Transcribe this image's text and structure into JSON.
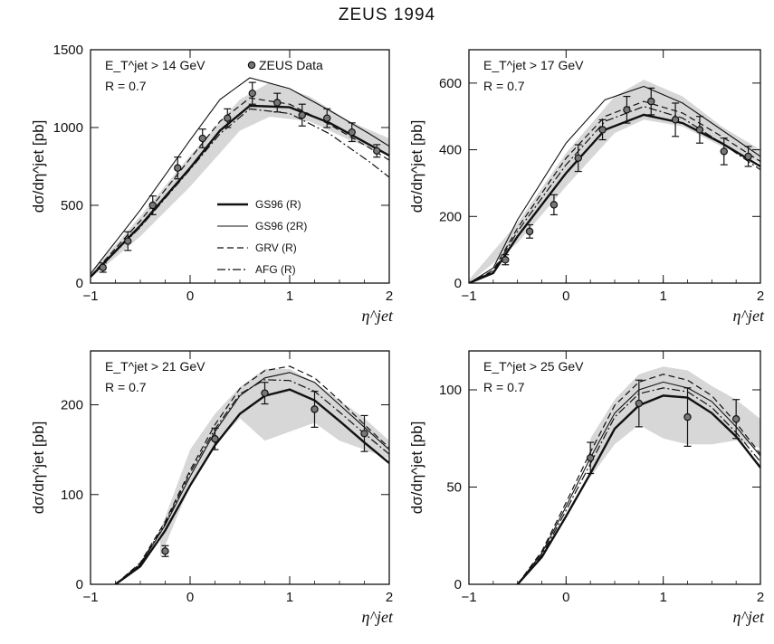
{
  "title": "ZEUS 1994",
  "legend": {
    "data_label": "ZEUS Data",
    "entries": [
      {
        "label": "GS96 (R)",
        "style": "thick"
      },
      {
        "label": "GS96 (2R)",
        "style": "thin"
      },
      {
        "label": "GRV (R)",
        "style": "dashed"
      },
      {
        "label": "AFG (R)",
        "style": "dashdot"
      }
    ]
  },
  "chart_data": [
    {
      "type": "line",
      "cut_label": "E_T^jet > 14 GeV",
      "radius_label": "R = 0.7",
      "ylabel": "dσ/dη^jet [pb]",
      "xlabel": "η^jet",
      "xlim": [
        -1,
        2
      ],
      "ylim": [
        0,
        1500
      ],
      "yticks": [
        0,
        500,
        1000,
        1500
      ],
      "xticks": [
        -1,
        0,
        1,
        2
      ],
      "data": {
        "x": [
          -0.875,
          -0.625,
          -0.375,
          -0.125,
          0.125,
          0.375,
          0.625,
          0.875,
          1.125,
          1.375,
          1.625,
          1.875
        ],
        "y": [
          100,
          270,
          500,
          740,
          930,
          1060,
          1220,
          1160,
          1080,
          1060,
          970,
          850
        ],
        "err": [
          30,
          60,
          60,
          70,
          60,
          60,
          70,
          60,
          70,
          60,
          60,
          40
        ]
      },
      "band": {
        "x": [
          -1.0,
          -0.5,
          0.0,
          0.5,
          0.8,
          1.2,
          1.6,
          2.0
        ],
        "low": [
          30,
          300,
          620,
          980,
          1070,
          1040,
          920,
          820
        ],
        "high": [
          60,
          430,
          820,
          1180,
          1290,
          1200,
          1040,
          930
        ]
      },
      "series": [
        {
          "name": "GS96 (R)",
          "x": [
            -1.0,
            -0.5,
            0.0,
            0.3,
            0.6,
            1.0,
            1.4,
            1.8,
            2.0
          ],
          "y": [
            40,
            370,
            740,
            980,
            1140,
            1130,
            1030,
            890,
            820
          ]
        },
        {
          "name": "GS96 (2R)",
          "x": [
            -1.0,
            -0.5,
            0.0,
            0.3,
            0.6,
            1.0,
            1.4,
            1.8,
            2.0
          ],
          "y": [
            60,
            470,
            920,
            1180,
            1320,
            1250,
            1110,
            960,
            880
          ]
        },
        {
          "name": "GRV (R)",
          "x": [
            -1.0,
            -0.5,
            0.0,
            0.3,
            0.6,
            1.0,
            1.4,
            1.8,
            2.0
          ],
          "y": [
            45,
            400,
            800,
            1040,
            1190,
            1150,
            1020,
            870,
            790
          ]
        },
        {
          "name": "AFG (R)",
          "x": [
            -1.0,
            -0.5,
            0.0,
            0.3,
            0.6,
            1.0,
            1.4,
            1.8,
            2.0
          ],
          "y": [
            40,
            360,
            730,
            960,
            1120,
            1090,
            960,
            780,
            680
          ]
        }
      ]
    },
    {
      "type": "line",
      "cut_label": "E_T^jet > 17 GeV",
      "radius_label": "R = 0.7",
      "ylabel": "dσ/dη^jet [pb]",
      "xlabel": "η^jet",
      "xlim": [
        -1,
        2
      ],
      "ylim": [
        0,
        700
      ],
      "yticks": [
        0,
        200,
        400,
        600
      ],
      "xticks": [
        -1,
        0,
        1,
        2
      ],
      "data": {
        "x": [
          -0.625,
          -0.375,
          -0.125,
          0.125,
          0.375,
          0.625,
          0.875,
          1.125,
          1.375,
          1.625,
          1.875
        ],
        "y": [
          70,
          155,
          235,
          375,
          460,
          520,
          545,
          490,
          460,
          395,
          380
        ],
        "err": [
          15,
          20,
          30,
          40,
          30,
          40,
          40,
          50,
          40,
          40,
          30
        ]
      },
      "band": {
        "x": [
          -1.0,
          -0.5,
          0.0,
          0.5,
          0.8,
          1.2,
          1.6,
          2.0
        ],
        "low": [
          0,
          120,
          290,
          450,
          490,
          470,
          410,
          360
        ],
        "high": [
          10,
          180,
          390,
          560,
          610,
          560,
          470,
          400
        ]
      },
      "series": [
        {
          "name": "GS96 (R)",
          "x": [
            -1.0,
            -0.75,
            -0.5,
            0.0,
            0.4,
            0.8,
            1.2,
            1.6,
            2.0
          ],
          "y": [
            0,
            30,
            140,
            330,
            460,
            505,
            480,
            420,
            350
          ]
        },
        {
          "name": "GS96 (2R)",
          "x": [
            -1.0,
            -0.75,
            -0.5,
            0.0,
            0.4,
            0.8,
            1.2,
            1.6,
            2.0
          ],
          "y": [
            0,
            45,
            190,
            420,
            550,
            590,
            540,
            460,
            380
          ]
        },
        {
          "name": "GRV (R)",
          "x": [
            -1.0,
            -0.75,
            -0.5,
            0.0,
            0.4,
            0.8,
            1.2,
            1.6,
            2.0
          ],
          "y": [
            0,
            38,
            165,
            375,
            500,
            545,
            510,
            440,
            365
          ]
        },
        {
          "name": "AFG (R)",
          "x": [
            -1.0,
            -0.75,
            -0.5,
            0.0,
            0.4,
            0.8,
            1.2,
            1.6,
            2.0
          ],
          "y": [
            0,
            35,
            155,
            355,
            485,
            530,
            495,
            420,
            340
          ]
        }
      ]
    },
    {
      "type": "line",
      "cut_label": "E_T^jet > 21 GeV",
      "radius_label": "R = 0.7",
      "ylabel": "dσ/dη^jet [pb]",
      "xlabel": "η^jet",
      "xlim": [
        -1,
        2
      ],
      "ylim": [
        0,
        260
      ],
      "yticks": [
        0,
        100,
        200
      ],
      "xticks": [
        -1,
        0,
        1,
        2
      ],
      "data": {
        "x": [
          -0.25,
          0.25,
          0.75,
          1.25,
          1.75
        ],
        "y": [
          37,
          162,
          213,
          195,
          168
        ],
        "err": [
          6,
          12,
          12,
          20,
          20
        ]
      },
      "band": {
        "x": [
          -0.3,
          0.0,
          0.25,
          0.5,
          0.75,
          1.0,
          1.25,
          1.5,
          1.75,
          2.0
        ],
        "low": [
          30,
          110,
          155,
          185,
          160,
          170,
          180,
          160,
          150,
          140
        ],
        "high": [
          60,
          150,
          190,
          220,
          240,
          240,
          225,
          205,
          185,
          160
        ]
      },
      "series": [
        {
          "name": "GS96 (R)",
          "x": [
            -0.75,
            -0.5,
            -0.25,
            0.0,
            0.25,
            0.5,
            0.75,
            1.0,
            1.25,
            1.5,
            1.75,
            2.0
          ],
          "y": [
            0,
            20,
            60,
            110,
            155,
            190,
            210,
            217,
            205,
            182,
            158,
            135
          ]
        },
        {
          "name": "GS96 (2R)",
          "x": [
            -0.75,
            -0.5,
            -0.25,
            0.0,
            0.25,
            0.5,
            0.75,
            1.0,
            1.25,
            1.5,
            1.75,
            2.0
          ],
          "y": [
            0,
            22,
            66,
            120,
            170,
            210,
            230,
            236,
            225,
            200,
            175,
            150
          ]
        },
        {
          "name": "GRV (R)",
          "x": [
            -0.75,
            -0.5,
            -0.25,
            0.0,
            0.25,
            0.5,
            0.75,
            1.0,
            1.25,
            1.5,
            1.75,
            2.0
          ],
          "y": [
            0,
            24,
            70,
            127,
            178,
            218,
            238,
            243,
            230,
            205,
            178,
            152
          ]
        },
        {
          "name": "AFG (R)",
          "x": [
            -0.75,
            -0.5,
            -0.25,
            0.0,
            0.25,
            0.5,
            0.75,
            1.0,
            1.25,
            1.5,
            1.75,
            2.0
          ],
          "y": [
            0,
            23,
            68,
            124,
            173,
            212,
            228,
            227,
            215,
            192,
            168,
            145
          ]
        }
      ]
    },
    {
      "type": "line",
      "cut_label": "E_T^jet > 25 GeV",
      "radius_label": "R = 0.7",
      "ylabel": "dσ/dη^jet [pb]",
      "xlabel": "η^jet",
      "xlim": [
        -1,
        2
      ],
      "ylim": [
        0,
        120
      ],
      "yticks": [
        0,
        50,
        100
      ],
      "xticks": [
        -1,
        0,
        1,
        2
      ],
      "data": {
        "x": [
          0.25,
          0.75,
          1.25,
          1.75
        ],
        "y": [
          65,
          93,
          86,
          85
        ],
        "err": [
          8,
          12,
          15,
          10
        ]
      },
      "band": {
        "x": [
          0.25,
          0.5,
          0.75,
          1.0,
          1.25,
          1.5,
          1.75,
          2.0
        ],
        "low": [
          55,
          72,
          82,
          75,
          72,
          72,
          74,
          70
        ],
        "high": [
          75,
          95,
          108,
          112,
          110,
          102,
          95,
          85
        ]
      },
      "series": [
        {
          "name": "GS96 (R)",
          "x": [
            -0.5,
            -0.25,
            0.0,
            0.25,
            0.5,
            0.75,
            1.0,
            1.25,
            1.5,
            1.75,
            2.0
          ],
          "y": [
            0,
            14,
            35,
            57,
            80,
            92,
            97,
            96,
            88,
            76,
            60
          ]
        },
        {
          "name": "GS96 (2R)",
          "x": [
            -0.5,
            -0.25,
            0.0,
            0.25,
            0.5,
            0.75,
            1.0,
            1.25,
            1.5,
            1.75,
            2.0
          ],
          "y": [
            0,
            16,
            40,
            65,
            88,
            100,
            104,
            101,
            94,
            81,
            66
          ]
        },
        {
          "name": "GRV (R)",
          "x": [
            -0.5,
            -0.25,
            0.0,
            0.25,
            0.5,
            0.75,
            1.0,
            1.25,
            1.5,
            1.75,
            2.0
          ],
          "y": [
            0,
            17,
            42,
            68,
            92,
            104,
            108,
            105,
            97,
            83,
            67
          ]
        },
        {
          "name": "AFG (R)",
          "x": [
            -0.5,
            -0.25,
            0.0,
            0.25,
            0.5,
            0.75,
            1.0,
            1.25,
            1.5,
            1.75,
            2.0
          ],
          "y": [
            0,
            15,
            38,
            62,
            86,
            98,
            101,
            99,
            91,
            78,
            63
          ]
        }
      ]
    }
  ]
}
